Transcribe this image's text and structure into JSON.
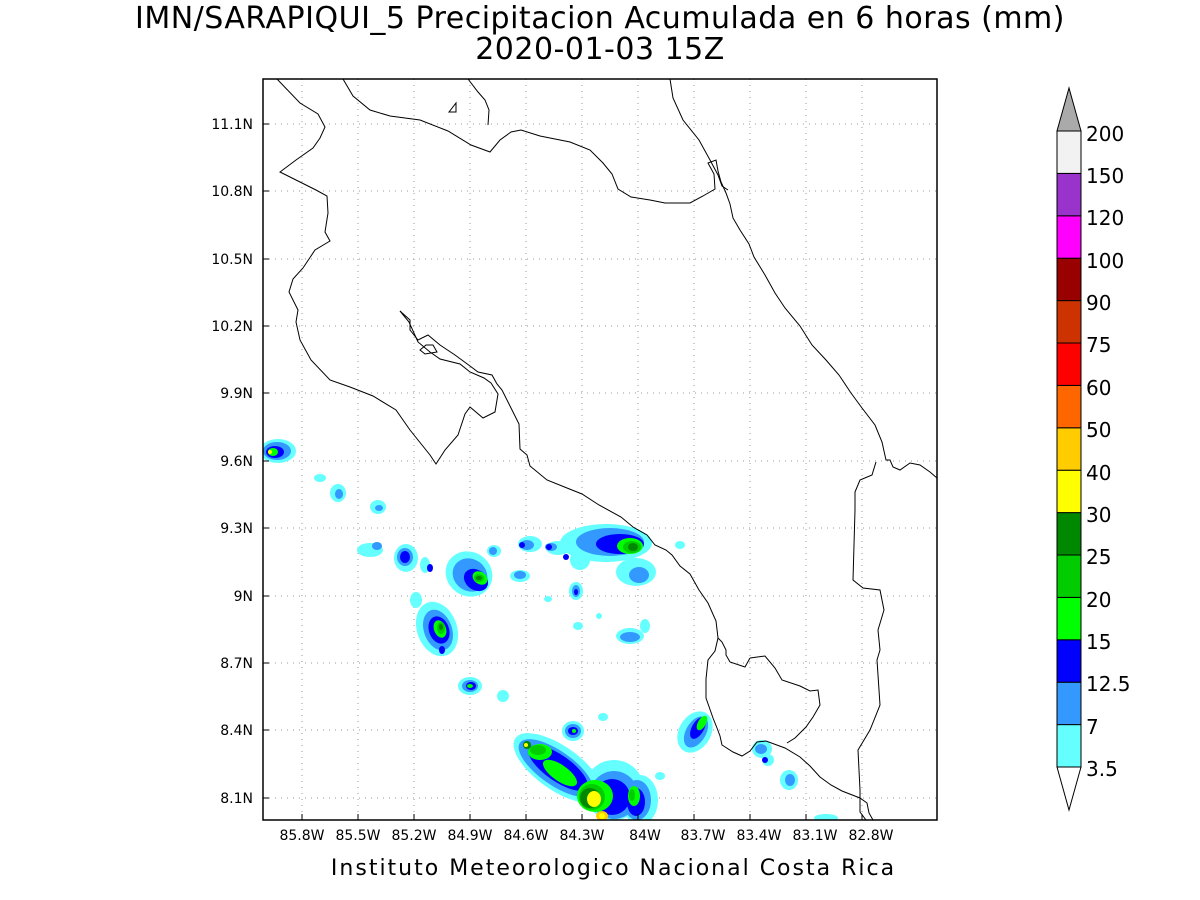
{
  "title": "IMN/SARAPIQUI_5 Precipitacion Acumulada en 6 horas (mm)",
  "subtitle": "2020-01-03 15Z",
  "footer": "Instituto Meteorologico Nacional Costa Rica",
  "lat_labels": [
    "11.1N",
    "10.8N",
    "10.5N",
    "10.2N",
    "9.9N",
    "9.6N",
    "9.3N",
    "9N",
    "8.7N",
    "8.4N",
    "8.1N"
  ],
  "lon_labels": [
    "85.8W",
    "85.5W",
    "85.2W",
    "84.9W",
    "84.6W",
    "84.3W",
    "84W",
    "83.7W",
    "83.4W",
    "83.1W",
    "82.8W"
  ],
  "colorbar": {
    "levels": [
      "3.5",
      "7",
      "12.5",
      "15",
      "20",
      "25",
      "30",
      "40",
      "50",
      "60",
      "75",
      "90",
      "100",
      "120",
      "150",
      "200"
    ],
    "colors": [
      "#66ffff",
      "#3399ff",
      "#0000ff",
      "#00ff00",
      "#00cc00",
      "#008800",
      "#ffff00",
      "#ffcc00",
      "#ff6600",
      "#ff0000",
      "#cc3300",
      "#990000",
      "#ff00ff",
      "#9933cc",
      "#f2f2f2",
      "#aaaaaa"
    ]
  }
}
